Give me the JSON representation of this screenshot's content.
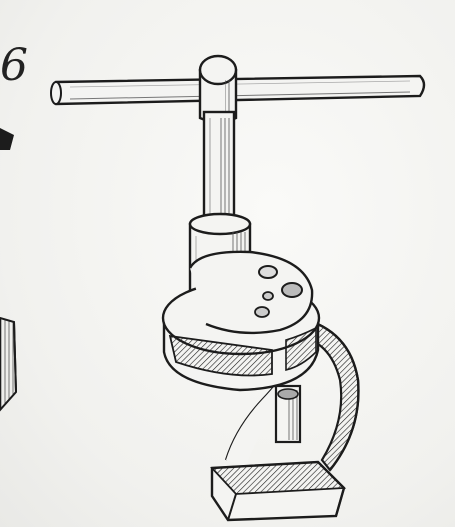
{
  "figure": {
    "label": "6"
  },
  "colors": {
    "ink": "#1c1c1c",
    "paper": "#f4f4f2",
    "shade": "#8a8a8a"
  },
  "icons": [
    "tap-wrench-illustration"
  ]
}
